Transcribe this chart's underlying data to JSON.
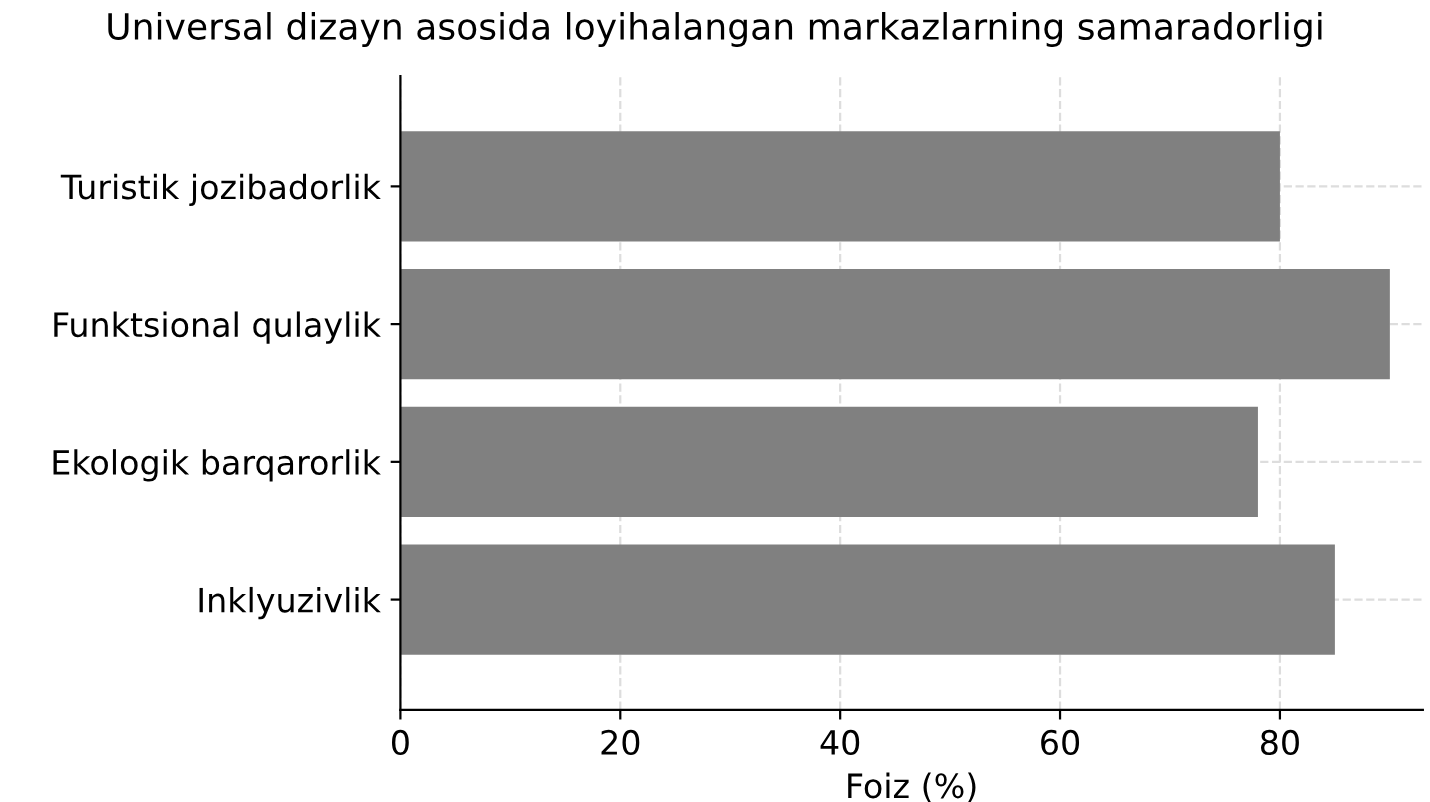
{
  "chart_data": {
    "type": "bar",
    "orientation": "horizontal",
    "title": "Universal dizayn asosida loyihalangan markazlarning samaradorligi",
    "xlabel": "Foiz (%)",
    "categories": [
      "Turistik jozibadorlik",
      "Funktsional qulaylik",
      "Ekologik barqarorlik",
      "Inklyuzivlik"
    ],
    "values": [
      80,
      90,
      78,
      85
    ],
    "color": "#808080",
    "xlim": [
      0,
      93
    ],
    "xticks": [
      0,
      20,
      40,
      60,
      80
    ],
    "grid": true,
    "line_style": "dashed"
  }
}
